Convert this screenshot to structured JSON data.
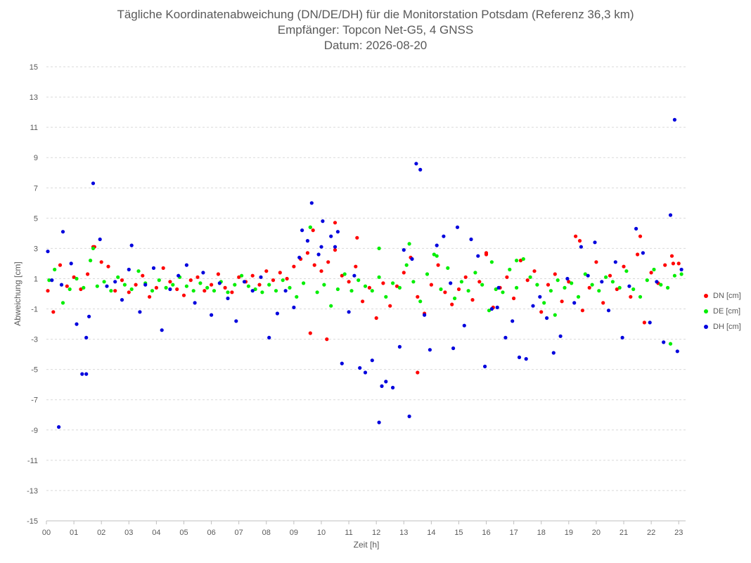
{
  "chart_data": {
    "type": "scatter",
    "title": "Tägliche Koordinatenabweichung (DN/DE/DH) für die Monitorstation Potsdam (Referenz 36,3 km)",
    "subtitle_1": "Empfänger: Topcon Net-G5, 4 GNSS",
    "subtitle_2": "Datum: 2026-08-20",
    "xlabel": "Zeit [h]",
    "ylabel": "Abweichung [cm]",
    "xlim": [
      0,
      23.25
    ],
    "ylim": [
      -15,
      15
    ],
    "x_ticks": [
      "00",
      "01",
      "02",
      "03",
      "04",
      "05",
      "06",
      "07",
      "08",
      "09",
      "10",
      "11",
      "12",
      "13",
      "14",
      "15",
      "16",
      "17",
      "18",
      "19",
      "20",
      "21",
      "22",
      "23"
    ],
    "y_ticks": [
      15,
      13,
      11,
      9,
      7,
      5,
      3,
      1,
      -1,
      -3,
      -5,
      -7,
      -9,
      -11,
      -13,
      -15
    ],
    "grid": "horizontal dashed",
    "legend_position": "right",
    "series": [
      {
        "name": "DN [cm]",
        "color": "#ff0000",
        "x": [
          0.05,
          0.25,
          0.5,
          0.75,
          1.0,
          1.25,
          1.5,
          1.75,
          2.0,
          2.25,
          2.5,
          2.75,
          3.0,
          3.25,
          3.5,
          3.75,
          4.0,
          4.25,
          4.5,
          4.75,
          5.0,
          5.25,
          5.5,
          5.75,
          6.0,
          6.25,
          6.5,
          6.75,
          7.0,
          7.25,
          7.5,
          7.75,
          8.0,
          8.25,
          8.5,
          8.75,
          9.0,
          9.25,
          9.5,
          9.75,
          10.0,
          10.25,
          10.5,
          10.75,
          11.0,
          11.25,
          11.5,
          11.75,
          12.0,
          12.25,
          12.5,
          12.75,
          13.0,
          13.25,
          13.5,
          13.75,
          14.0,
          14.25,
          14.5,
          14.75,
          15.0,
          15.25,
          15.5,
          15.75,
          16.0,
          16.25,
          16.5,
          16.75,
          17.0,
          17.25,
          17.5,
          17.75,
          18.0,
          18.25,
          18.5,
          18.75,
          19.0,
          19.25,
          19.5,
          19.75,
          20.0,
          20.25,
          20.5,
          20.75,
          21.0,
          21.25,
          21.5,
          21.75,
          22.0,
          22.25,
          22.5,
          22.75,
          23.0,
          1.7,
          9.7,
          10.5,
          11.3,
          13.5,
          16.0,
          19.4,
          21.6,
          22.8,
          10.2,
          9.6
        ],
        "y": [
          0.2,
          -1.2,
          1.9,
          0.5,
          1.1,
          0.3,
          1.3,
          3.1,
          2.1,
          1.8,
          0.2,
          0.9,
          0.1,
          0.6,
          1.2,
          -0.2,
          0.4,
          1.7,
          0.8,
          0.3,
          -0.1,
          0.9,
          1.1,
          0.2,
          0.6,
          1.3,
          0.4,
          0.1,
          1.1,
          0.8,
          1.2,
          0.6,
          1.5,
          0.9,
          1.4,
          1.0,
          1.8,
          2.3,
          2.7,
          1.9,
          1.5,
          2.1,
          2.9,
          1.2,
          0.8,
          1.8,
          -0.5,
          0.4,
          -1.6,
          0.7,
          -0.8,
          0.5,
          1.4,
          2.4,
          -0.2,
          -1.3,
          0.6,
          1.9,
          0.1,
          -0.7,
          0.3,
          1.1,
          -0.4,
          0.8,
          2.6,
          -0.9,
          0.4,
          1.1,
          -0.3,
          2.2,
          0.9,
          1.5,
          -1.2,
          0.6,
          1.3,
          -0.5,
          0.8,
          3.8,
          -1.1,
          0.4,
          2.1,
          -0.6,
          1.2,
          0.3,
          1.8,
          -0.2,
          2.6,
          -1.9,
          1.4,
          0.7,
          1.9,
          2.5,
          2.0,
          3.1,
          4.2,
          4.7,
          3.7,
          -5.2,
          2.7,
          3.5,
          3.8,
          2.0,
          -3.0,
          -2.6
        ],
        "marker": "circle"
      },
      {
        "name": "DE [cm]",
        "color": "#00ee00",
        "x": [
          0.1,
          0.3,
          0.6,
          0.85,
          1.1,
          1.35,
          1.6,
          1.85,
          2.1,
          2.35,
          2.6,
          2.85,
          3.1,
          3.35,
          3.6,
          3.85,
          4.1,
          4.35,
          4.6,
          4.85,
          5.1,
          5.35,
          5.6,
          5.85,
          6.1,
          6.35,
          6.6,
          6.85,
          7.1,
          7.35,
          7.6,
          7.85,
          8.1,
          8.35,
          8.6,
          8.85,
          9.1,
          9.35,
          9.6,
          9.85,
          10.1,
          10.35,
          10.6,
          10.85,
          11.1,
          11.35,
          11.6,
          11.85,
          12.1,
          12.35,
          12.6,
          12.85,
          13.1,
          13.35,
          13.6,
          13.85,
          14.1,
          14.35,
          14.6,
          14.85,
          15.1,
          15.35,
          15.6,
          15.85,
          16.1,
          16.35,
          16.6,
          16.85,
          17.1,
          17.35,
          17.6,
          17.85,
          18.1,
          18.35,
          18.6,
          18.85,
          19.1,
          19.35,
          19.6,
          19.85,
          20.1,
          20.35,
          20.6,
          20.85,
          21.1,
          21.35,
          21.6,
          21.85,
          22.1,
          22.35,
          22.6,
          22.85,
          23.1,
          1.7,
          9.6,
          12.1,
          13.2,
          14.2,
          16.2,
          17.1,
          18.5,
          22.7
        ],
        "y": [
          0.9,
          1.6,
          -0.6,
          0.3,
          1.0,
          0.4,
          2.2,
          0.5,
          0.8,
          0.2,
          1.1,
          0.6,
          0.3,
          1.5,
          0.7,
          0.2,
          0.9,
          0.4,
          0.6,
          1.1,
          0.5,
          0.2,
          0.7,
          0.4,
          0.2,
          0.8,
          0.1,
          0.6,
          1.2,
          0.5,
          0.3,
          0.1,
          0.6,
          0.2,
          0.9,
          0.4,
          -0.2,
          0.7,
          4.4,
          0.1,
          0.6,
          -0.8,
          0.3,
          1.3,
          0.2,
          0.9,
          0.5,
          0.2,
          1.1,
          -0.2,
          0.7,
          0.4,
          1.9,
          0.8,
          -0.5,
          1.3,
          2.6,
          0.3,
          1.7,
          -0.3,
          0.8,
          0.2,
          1.4,
          0.6,
          -1.1,
          0.3,
          0.1,
          1.6,
          0.4,
          2.3,
          1.1,
          0.6,
          -0.6,
          0.2,
          0.9,
          0.4,
          0.7,
          -0.2,
          1.3,
          0.6,
          0.2,
          1.1,
          0.8,
          0.4,
          1.5,
          0.3,
          -0.2,
          0.9,
          1.6,
          0.6,
          0.4,
          1.2,
          1.3,
          3.0,
          4.4,
          3.0,
          3.3,
          2.5,
          2.1,
          2.2,
          -1.4,
          -3.3
        ],
        "marker": "circle"
      },
      {
        "name": "DH [cm]",
        "color": "#0000dd",
        "x": [
          0.05,
          0.2,
          0.45,
          0.6,
          0.9,
          1.1,
          1.3,
          1.45,
          1.55,
          1.7,
          1.95,
          2.2,
          2.5,
          2.75,
          3.0,
          3.1,
          3.4,
          3.6,
          3.9,
          4.2,
          4.5,
          4.8,
          5.1,
          5.4,
          5.7,
          6.0,
          6.3,
          6.6,
          6.9,
          7.2,
          7.5,
          7.8,
          8.1,
          8.4,
          8.7,
          9.0,
          9.3,
          9.5,
          9.65,
          9.9,
          10.05,
          10.35,
          10.5,
          10.75,
          11.0,
          11.2,
          11.4,
          11.6,
          11.85,
          12.1,
          12.35,
          12.6,
          12.85,
          13.0,
          13.2,
          13.45,
          13.6,
          13.75,
          13.95,
          14.2,
          14.45,
          14.7,
          14.95,
          15.2,
          15.45,
          15.7,
          15.95,
          16.2,
          16.45,
          16.7,
          16.95,
          17.2,
          17.45,
          17.7,
          17.95,
          18.2,
          18.45,
          18.7,
          18.95,
          19.2,
          19.45,
          19.7,
          19.95,
          20.2,
          20.45,
          20.7,
          20.95,
          21.2,
          21.45,
          21.7,
          21.95,
          22.2,
          22.45,
          22.7,
          22.85,
          22.95,
          23.1,
          0.55,
          1.45,
          9.2,
          10.0,
          10.6,
          12.2,
          13.3,
          14.8,
          16.4
        ],
        "y": [
          2.8,
          0.9,
          -8.8,
          4.1,
          2.0,
          -2.0,
          -5.3,
          -5.3,
          -1.5,
          7.3,
          3.6,
          0.5,
          0.8,
          -0.4,
          1.6,
          3.2,
          -1.2,
          0.6,
          1.7,
          -2.4,
          0.3,
          1.2,
          1.9,
          -0.6,
          1.4,
          -1.4,
          0.7,
          -0.3,
          -1.8,
          0.8,
          0.2,
          1.1,
          -2.9,
          -1.3,
          0.2,
          -0.9,
          4.2,
          3.5,
          6.0,
          2.6,
          4.8,
          3.8,
          3.1,
          -4.6,
          -1.2,
          1.2,
          -4.9,
          -5.2,
          -4.4,
          -8.5,
          -5.8,
          -6.2,
          -3.5,
          2.9,
          -8.1,
          8.6,
          8.2,
          -1.4,
          -3.7,
          3.2,
          3.8,
          0.7,
          4.4,
          -2.1,
          3.6,
          2.5,
          -4.8,
          -1.0,
          0.4,
          -2.9,
          -1.8,
          -4.2,
          -4.3,
          -0.8,
          -0.2,
          -1.6,
          -3.9,
          -2.8,
          1.0,
          -0.6,
          3.1,
          1.2,
          3.4,
          0.8,
          -1.1,
          2.1,
          -2.9,
          0.5,
          4.3,
          2.7,
          -1.9,
          0.8,
          -3.2,
          5.2,
          11.5,
          -3.8,
          1.6,
          0.6,
          -2.9,
          2.4,
          3.1,
          4.1,
          -6.1,
          2.3,
          -3.6,
          -0.9
        ],
        "marker": "circle"
      }
    ],
    "legend": [
      "DN [cm]",
      "DE [cm]",
      "DH [cm]"
    ]
  }
}
